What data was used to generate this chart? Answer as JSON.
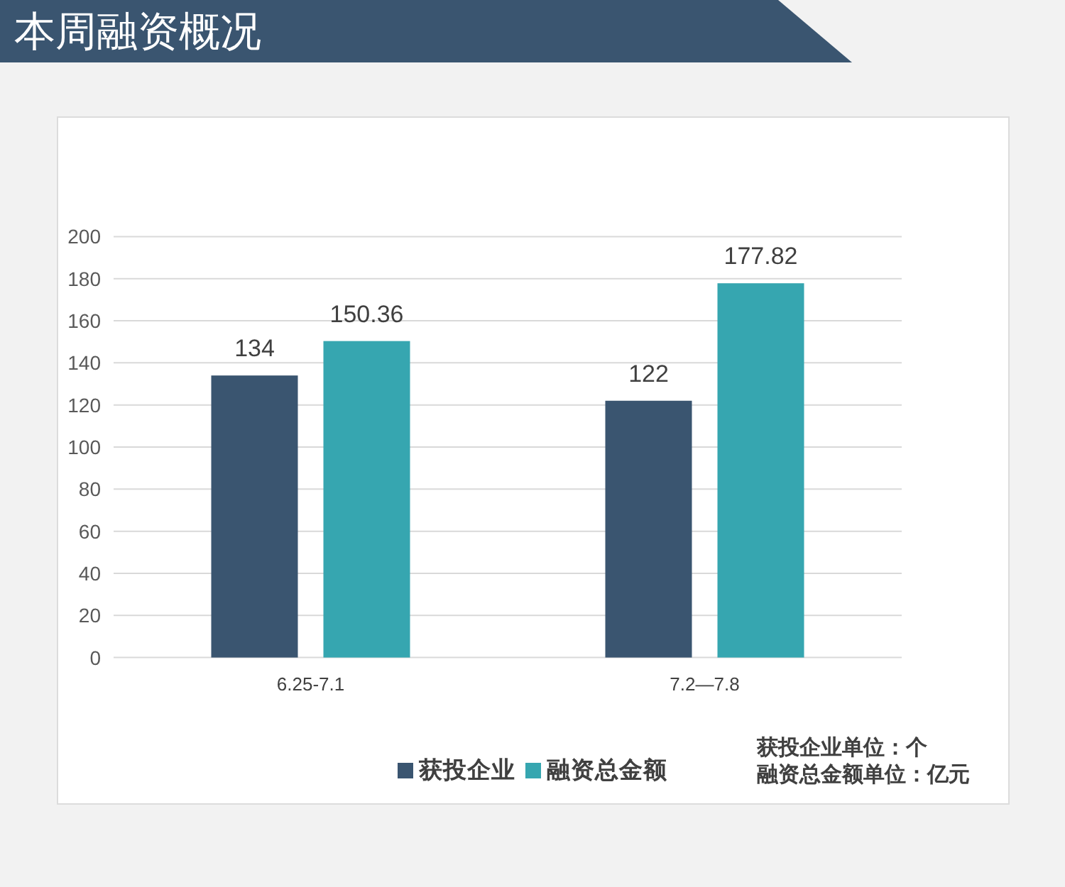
{
  "chart_data": {
    "type": "bar",
    "title": "本周融资概况",
    "categories": [
      "6.25-7.1",
      "7.2—7.8"
    ],
    "series": [
      {
        "name": "获投企业",
        "color": "#3a5570",
        "values": [
          134,
          122
        ]
      },
      {
        "name": "融资总金额",
        "color": "#36a6b0",
        "values": [
          150.36,
          177.82
        ]
      }
    ],
    "ylim": [
      0,
      200
    ],
    "yticks": [
      0,
      20,
      40,
      60,
      80,
      100,
      120,
      140,
      160,
      180,
      200
    ],
    "grid": "y",
    "legend": "bottom",
    "data_labels": true,
    "annotations": [
      "获投企业单位：个",
      "融资总金额单位：亿元"
    ]
  }
}
